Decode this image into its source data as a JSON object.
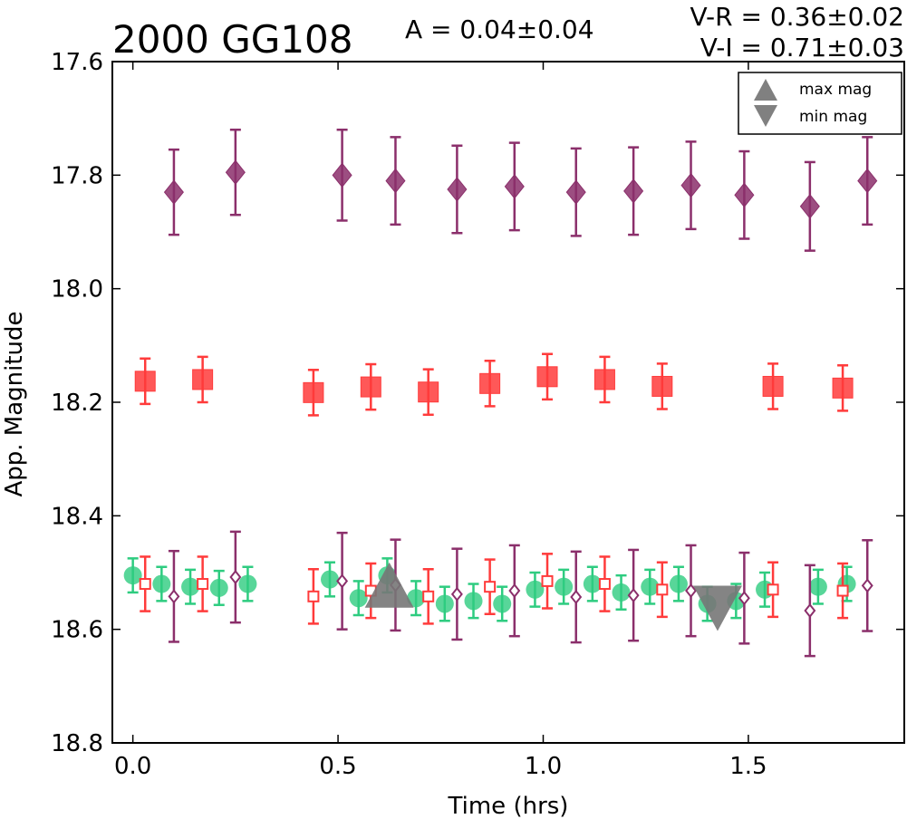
{
  "chart_data": {
    "type": "scatter",
    "title": "2000 GG108",
    "amplitude_label": "A  = 0.04±0.04",
    "color_labels": [
      "V-R = 0.36±0.02",
      "V-I  = 0.71±0.03"
    ],
    "xlabel": "Time (hrs)",
    "ylabel": "App. Magnitude",
    "xlim": [
      -0.05,
      1.88
    ],
    "ylim": [
      18.8,
      17.6
    ],
    "y_inverted": true,
    "x_ticks": [
      "0.0",
      "0.5",
      "1.0",
      "1.5"
    ],
    "x_tick_values": [
      0.0,
      0.5,
      1.0,
      1.5
    ],
    "y_ticks": [
      "17.6",
      "17.8",
      "18.0",
      "18.2",
      "18.4",
      "18.6",
      "18.8"
    ],
    "y_tick_values": [
      17.6,
      17.8,
      18.0,
      18.2,
      18.4,
      18.6,
      18.8
    ],
    "grid": false,
    "legend": {
      "placement": "top-right",
      "entries": [
        {
          "label": "max mag",
          "marker": "triangle-up",
          "color": "#808080"
        },
        {
          "label": "min mag",
          "marker": "triangle-down",
          "color": "#808080"
        }
      ]
    },
    "extrema": [
      {
        "kind": "max",
        "x": 0.625,
        "y": 18.53
      },
      {
        "kind": "min",
        "x": 1.425,
        "y": 18.555
      }
    ],
    "series": [
      {
        "marker": "diamond",
        "filled": true,
        "color": "#8b2f6b",
        "x": [
          0.1,
          0.25,
          0.51,
          0.64,
          0.79,
          0.93,
          1.08,
          1.22,
          1.36,
          1.49,
          1.65,
          1.79
        ],
        "y": [
          17.83,
          17.795,
          17.8,
          17.81,
          17.825,
          17.82,
          17.83,
          17.828,
          17.818,
          17.835,
          17.855,
          17.81
        ],
        "err": [
          0.075,
          0.075,
          0.08,
          0.077,
          0.077,
          0.077,
          0.077,
          0.077,
          0.077,
          0.077,
          0.078,
          0.077
        ]
      },
      {
        "marker": "square",
        "filled": true,
        "color": "#ff3b3b",
        "x": [
          0.03,
          0.17,
          0.44,
          0.58,
          0.72,
          0.87,
          1.01,
          1.15,
          1.29,
          1.56,
          1.73
        ],
        "y": [
          18.163,
          18.16,
          18.183,
          18.173,
          18.182,
          18.167,
          18.155,
          18.16,
          18.172,
          18.172,
          18.175
        ],
        "err": [
          0.04,
          0.04,
          0.04,
          0.04,
          0.04,
          0.04,
          0.04,
          0.04,
          0.04,
          0.04,
          0.04
        ]
      },
      {
        "marker": "circle",
        "filled": true,
        "color": "#2ecc80",
        "x": [
          0.0,
          0.07,
          0.14,
          0.21,
          0.28,
          0.48,
          0.55,
          0.62,
          0.69,
          0.76,
          0.83,
          0.9,
          0.98,
          1.05,
          1.12,
          1.19,
          1.26,
          1.33,
          1.4,
          1.47,
          1.54,
          1.67,
          1.74
        ],
        "y": [
          18.505,
          18.52,
          18.525,
          18.527,
          18.52,
          18.512,
          18.545,
          18.505,
          18.545,
          18.555,
          18.55,
          18.555,
          18.53,
          18.525,
          18.52,
          18.535,
          18.525,
          18.52,
          18.555,
          18.55,
          18.53,
          18.525,
          18.52
        ],
        "err": [
          0.03,
          0.03,
          0.03,
          0.03,
          0.03,
          0.03,
          0.03,
          0.03,
          0.03,
          0.03,
          0.03,
          0.03,
          0.03,
          0.03,
          0.03,
          0.03,
          0.03,
          0.03,
          0.03,
          0.03,
          0.03,
          0.03,
          0.03
        ]
      },
      {
        "marker": "square",
        "filled": false,
        "color": "#ff3b3b",
        "x": [
          0.03,
          0.17,
          0.44,
          0.58,
          0.72,
          0.87,
          1.01,
          1.15,
          1.29,
          1.56,
          1.73
        ],
        "y": [
          18.52,
          18.52,
          18.542,
          18.532,
          18.542,
          18.525,
          18.515,
          18.52,
          18.53,
          18.53,
          18.532
        ],
        "err": [
          0.048,
          0.048,
          0.048,
          0.048,
          0.048,
          0.048,
          0.048,
          0.048,
          0.048,
          0.048,
          0.048
        ]
      },
      {
        "marker": "diamond",
        "filled": false,
        "color": "#8b2f6b",
        "x": [
          0.1,
          0.25,
          0.51,
          0.64,
          0.79,
          0.93,
          1.08,
          1.22,
          1.36,
          1.49,
          1.65,
          1.79
        ],
        "y": [
          18.542,
          18.508,
          18.515,
          18.522,
          18.538,
          18.532,
          18.543,
          18.54,
          18.532,
          18.545,
          18.567,
          18.523
        ],
        "err": [
          0.08,
          0.08,
          0.085,
          0.08,
          0.08,
          0.08,
          0.08,
          0.08,
          0.08,
          0.08,
          0.08,
          0.08
        ]
      }
    ]
  }
}
